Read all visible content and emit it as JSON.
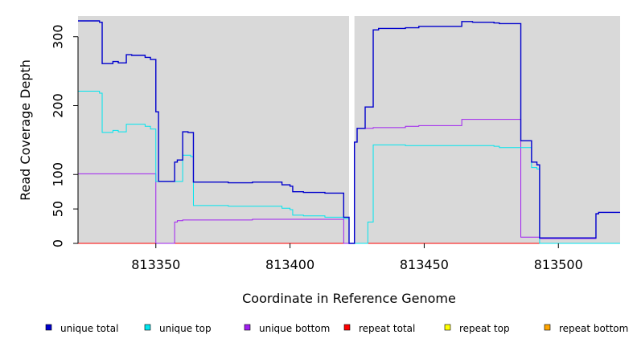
{
  "chart_data": {
    "type": "line",
    "title": "",
    "xlabel": "Coordinate in Reference Genome",
    "ylabel": "Read Coverage Depth",
    "xlim": [
      813321,
      813523
    ],
    "ylim": [
      0,
      330
    ],
    "x_ticks": [
      813350,
      813400,
      813450,
      813500
    ],
    "x_tick_labels": [
      "813350",
      "813400",
      "813450",
      "813500"
    ],
    "y_ticks": [
      0,
      50,
      100,
      200,
      300
    ],
    "y_tick_labels": [
      "0",
      "50",
      "100",
      "200",
      "300"
    ],
    "grid": false,
    "background": "#d9d9d9",
    "gap_band": [
      813422,
      813424
    ],
    "legend_position": "bottom",
    "series": [
      {
        "name": "unique total",
        "color": "#0000cd",
        "points": [
          [
            813321,
            323
          ],
          [
            813329,
            323
          ],
          [
            813329,
            321
          ],
          [
            813330,
            321
          ],
          [
            813330,
            261
          ],
          [
            813334,
            261
          ],
          [
            813334,
            264
          ],
          [
            813336,
            264
          ],
          [
            813336,
            262
          ],
          [
            813339,
            262
          ],
          [
            813339,
            274
          ],
          [
            813341,
            274
          ],
          [
            813341,
            273
          ],
          [
            813346,
            273
          ],
          [
            813346,
            270
          ],
          [
            813348,
            270
          ],
          [
            813348,
            267
          ],
          [
            813350,
            267
          ],
          [
            813350,
            191
          ],
          [
            813351,
            191
          ],
          [
            813351,
            90
          ],
          [
            813357,
            90
          ],
          [
            813357,
            118
          ],
          [
            813358,
            118
          ],
          [
            813358,
            121
          ],
          [
            813360,
            121
          ],
          [
            813360,
            162
          ],
          [
            813362,
            162
          ],
          [
            813362,
            161
          ],
          [
            813364,
            161
          ],
          [
            813364,
            89
          ],
          [
            813377,
            89
          ],
          [
            813377,
            88
          ],
          [
            813386,
            88
          ],
          [
            813386,
            89
          ],
          [
            813397,
            89
          ],
          [
            813397,
            85
          ],
          [
            813400,
            85
          ],
          [
            813400,
            83
          ],
          [
            813401,
            83
          ],
          [
            813401,
            75
          ],
          [
            813405,
            75
          ],
          [
            813405,
            74
          ],
          [
            813413,
            74
          ],
          [
            813413,
            73
          ],
          [
            813420,
            73
          ],
          [
            813420,
            38
          ],
          [
            813422,
            38
          ],
          [
            813422,
            0
          ],
          [
            813424,
            0
          ],
          [
            813424,
            147
          ],
          [
            813425,
            147
          ],
          [
            813425,
            167
          ],
          [
            813428,
            167
          ],
          [
            813428,
            198
          ],
          [
            813431,
            198
          ],
          [
            813431,
            310
          ],
          [
            813433,
            310
          ],
          [
            813433,
            312
          ],
          [
            813443,
            312
          ],
          [
            813443,
            313
          ],
          [
            813448,
            313
          ],
          [
            813448,
            315
          ],
          [
            813464,
            315
          ],
          [
            813464,
            322
          ],
          [
            813468,
            322
          ],
          [
            813468,
            321
          ],
          [
            813476,
            321
          ],
          [
            813476,
            320
          ],
          [
            813478,
            320
          ],
          [
            813478,
            319
          ],
          [
            813486,
            319
          ],
          [
            813486,
            149
          ],
          [
            813490,
            149
          ],
          [
            813490,
            118
          ],
          [
            813492,
            118
          ],
          [
            813492,
            114
          ],
          [
            813493,
            114
          ],
          [
            813493,
            8
          ],
          [
            813514,
            8
          ],
          [
            813514,
            43
          ],
          [
            813515,
            43
          ],
          [
            813515,
            45
          ],
          [
            813523,
            45
          ]
        ]
      },
      {
        "name": "unique top",
        "color": "#00e5ee",
        "points": [
          [
            813321,
            221
          ],
          [
            813329,
            221
          ],
          [
            813329,
            218
          ],
          [
            813330,
            218
          ],
          [
            813330,
            161
          ],
          [
            813334,
            161
          ],
          [
            813334,
            164
          ],
          [
            813336,
            164
          ],
          [
            813336,
            162
          ],
          [
            813339,
            162
          ],
          [
            813339,
            173
          ],
          [
            813346,
            173
          ],
          [
            813346,
            170
          ],
          [
            813348,
            170
          ],
          [
            813348,
            166
          ],
          [
            813350,
            166
          ],
          [
            813350,
            90
          ],
          [
            813360,
            90
          ],
          [
            813360,
            128
          ],
          [
            813363,
            128
          ],
          [
            813363,
            126
          ],
          [
            813364,
            126
          ],
          [
            813364,
            55
          ],
          [
            813377,
            55
          ],
          [
            813377,
            54
          ],
          [
            813397,
            54
          ],
          [
            813397,
            51
          ],
          [
            813400,
            51
          ],
          [
            813400,
            49
          ],
          [
            813401,
            49
          ],
          [
            813401,
            41
          ],
          [
            813405,
            41
          ],
          [
            813405,
            40
          ],
          [
            813413,
            40
          ],
          [
            813413,
            38
          ],
          [
            813420,
            38
          ],
          [
            813420,
            36
          ],
          [
            813422,
            36
          ],
          [
            813422,
            0
          ],
          [
            813429,
            0
          ],
          [
            813429,
            31
          ],
          [
            813431,
            31
          ],
          [
            813431,
            143
          ],
          [
            813443,
            143
          ],
          [
            813443,
            142
          ],
          [
            813476,
            142
          ],
          [
            813476,
            141
          ],
          [
            813478,
            141
          ],
          [
            813478,
            139
          ],
          [
            813486,
            139
          ],
          [
            813486,
            139
          ],
          [
            813490,
            139
          ],
          [
            813490,
            110
          ],
          [
            813492,
            110
          ],
          [
            813492,
            108
          ],
          [
            813493,
            108
          ],
          [
            813493,
            0
          ],
          [
            813523,
            0
          ]
        ]
      },
      {
        "name": "unique bottom",
        "color": "#a020f0",
        "points": [
          [
            813321,
            101
          ],
          [
            813350,
            101
          ],
          [
            813350,
            0
          ],
          [
            813357,
            0
          ],
          [
            813357,
            31
          ],
          [
            813358,
            31
          ],
          [
            813358,
            33
          ],
          [
            813360,
            33
          ],
          [
            813360,
            34
          ],
          [
            813377,
            34
          ],
          [
            813377,
            34
          ],
          [
            813386,
            34
          ],
          [
            813386,
            35
          ],
          [
            813397,
            35
          ],
          [
            813397,
            35
          ],
          [
            813420,
            35
          ],
          [
            813420,
            0
          ],
          [
            813424,
            0
          ],
          [
            813424,
            147
          ],
          [
            813425,
            147
          ],
          [
            813425,
            167
          ],
          [
            813431,
            167
          ],
          [
            813431,
            168
          ],
          [
            813443,
            168
          ],
          [
            813443,
            170
          ],
          [
            813448,
            170
          ],
          [
            813448,
            171
          ],
          [
            813464,
            171
          ],
          [
            813464,
            180
          ],
          [
            813486,
            180
          ],
          [
            813486,
            9
          ],
          [
            813493,
            9
          ],
          [
            813493,
            7
          ],
          [
            813514,
            7
          ],
          [
            813514,
            43
          ],
          [
            813515,
            43
          ],
          [
            813515,
            45
          ],
          [
            813523,
            45
          ]
        ]
      },
      {
        "name": "repeat total",
        "color": "#ff0000",
        "points": [
          [
            813321,
            0
          ],
          [
            813523,
            0
          ]
        ]
      },
      {
        "name": "repeat top",
        "color": "#ffff00",
        "points": [
          [
            813321,
            0
          ],
          [
            813523,
            0
          ]
        ]
      },
      {
        "name": "repeat bottom",
        "color": "#ffa500",
        "points": [
          [
            813321,
            0
          ],
          [
            813523,
            0
          ]
        ]
      }
    ]
  }
}
